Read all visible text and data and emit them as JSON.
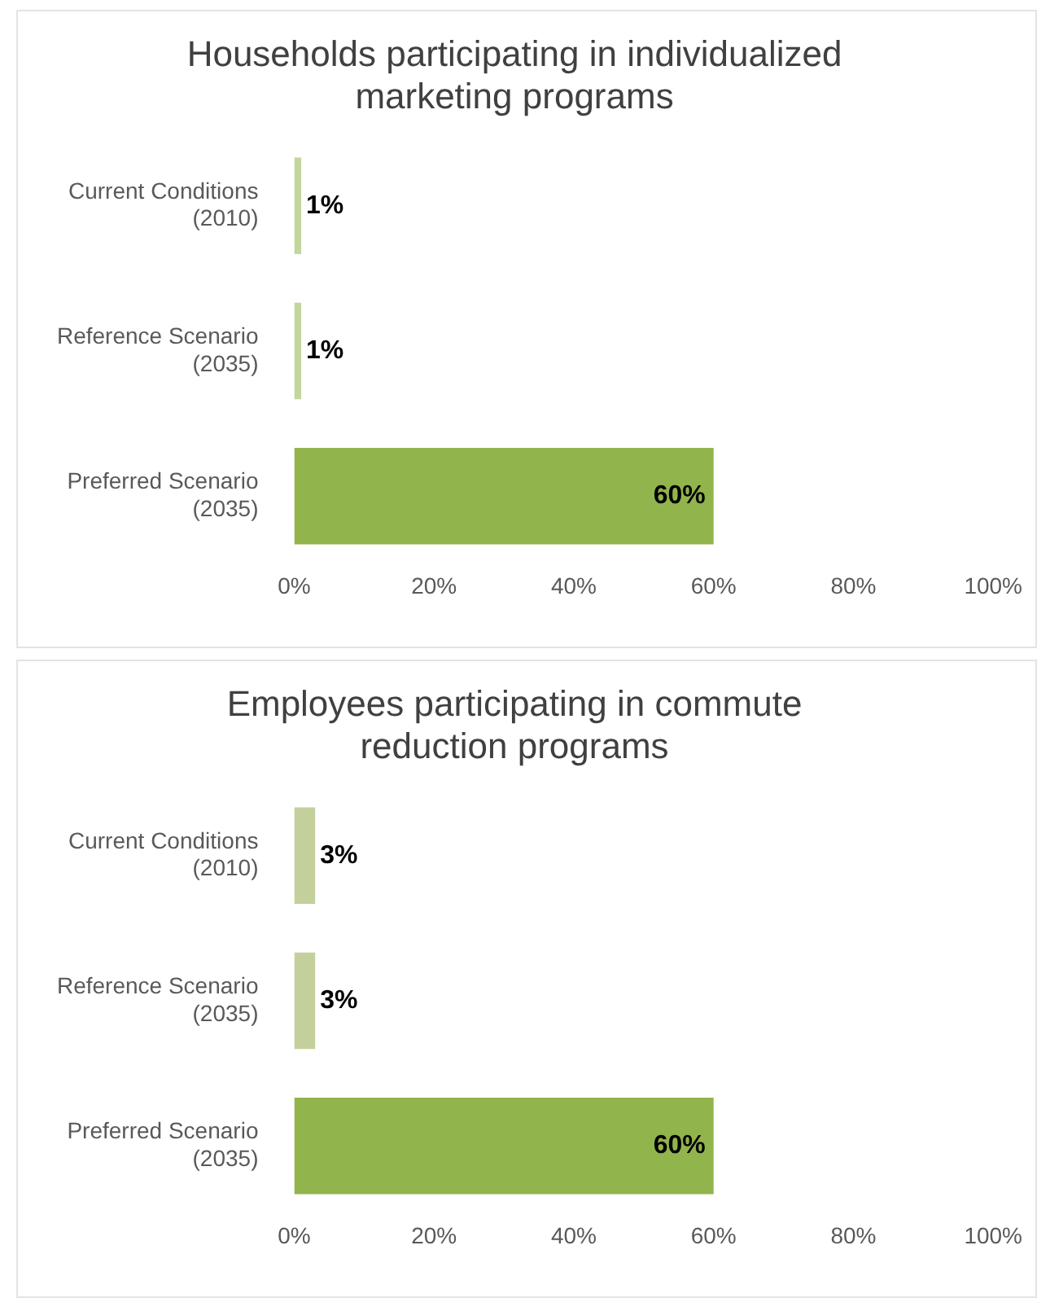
{
  "chart_data": [
    {
      "type": "bar",
      "orientation": "horizontal",
      "title": "Households participating in individualized marketing programs",
      "categories": [
        "Current Conditions (2010)",
        "Reference Scenario (2035)",
        "Preferred Scenario (2035)"
      ],
      "values": [
        1,
        1,
        60
      ],
      "value_labels": [
        "1%",
        "1%",
        "60%"
      ],
      "colors": [
        "#c3d69b",
        "#c3d69b",
        "#92b44c"
      ],
      "xlim": [
        0,
        100
      ],
      "xticks": [
        {
          "value": 0,
          "label": "0%"
        },
        {
          "value": 20,
          "label": "20%"
        },
        {
          "value": 40,
          "label": "40%"
        },
        {
          "value": 60,
          "label": "60%"
        },
        {
          "value": 80,
          "label": "80%"
        },
        {
          "value": 100,
          "label": "100%"
        }
      ],
      "grid": false,
      "legend": false
    },
    {
      "type": "bar",
      "orientation": "horizontal",
      "title": "Employees participating in commute reduction programs",
      "categories": [
        "Current Conditions (2010)",
        "Reference Scenario (2035)",
        "Preferred Scenario (2035)"
      ],
      "values": [
        3,
        3,
        60
      ],
      "value_labels": [
        "3%",
        "3%",
        "60%"
      ],
      "colors": [
        "#c3d09b",
        "#c3d09b",
        "#92b44c"
      ],
      "xlim": [
        0,
        100
      ],
      "xticks": [
        {
          "value": 0,
          "label": "0%"
        },
        {
          "value": 20,
          "label": "20%"
        },
        {
          "value": 40,
          "label": "40%"
        },
        {
          "value": 60,
          "label": "60%"
        },
        {
          "value": 80,
          "label": "80%"
        },
        {
          "value": 100,
          "label": "100%"
        }
      ],
      "grid": false,
      "legend": false
    }
  ]
}
